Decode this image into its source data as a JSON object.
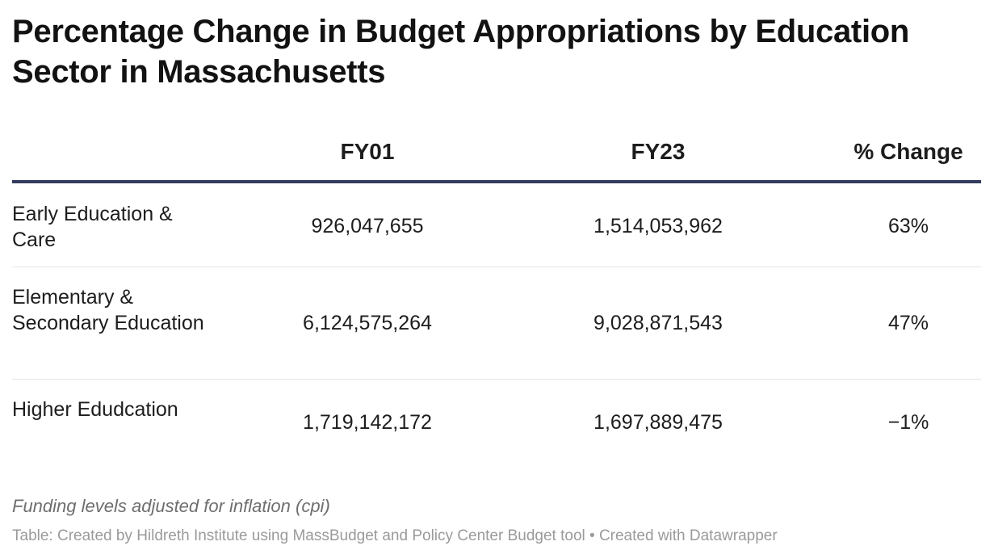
{
  "chart_data": {
    "type": "table",
    "title": "Percentage Change in Budget Appropriations by Education Sector in Massachusetts",
    "columns": [
      "",
      "FY01",
      "FY23",
      "% Change"
    ],
    "rows": [
      {
        "label": "Early Education & Care",
        "fy01": "926,047,655",
        "fy23": "1,514,053,962",
        "change": "63%"
      },
      {
        "label": "Elementary & Secondary Education",
        "fy01": "6,124,575,264",
        "fy23": "9,028,871,543",
        "change": "47%"
      },
      {
        "label": "Higher Edudcation",
        "fy01": "1,719,142,172",
        "fy23": "1,697,889,475",
        "change": "−1%"
      }
    ],
    "values": {
      "fy01": [
        926047655,
        6124575264,
        1719142172
      ],
      "fy23": [
        1514053962,
        9028871543,
        1697889475
      ],
      "pct_change": [
        63,
        47,
        -1
      ]
    },
    "header_rule_color": "#333c5e"
  },
  "notes": "Funding levels adjusted for inflation (cpi)",
  "source": "Table: Created by Hildreth Institute using MassBudget and Policy Center Budget tool • Created with Datawrapper"
}
